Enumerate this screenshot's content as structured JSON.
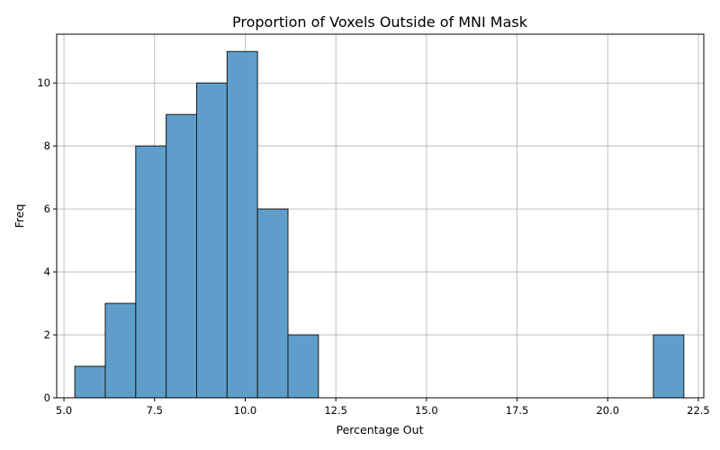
{
  "chart_data": {
    "type": "bar",
    "title": "Proportion of Voxels Outside of MNI Mask",
    "xlabel": "Percentage Out",
    "ylabel": "Freq",
    "xlim": [
      4.8,
      22.65
    ],
    "ylim": [
      0,
      11.55
    ],
    "xticks": [
      5.0,
      7.5,
      10.0,
      12.5,
      15.0,
      17.5,
      20.0,
      22.5
    ],
    "xtick_labels": [
      "5.0",
      "7.5",
      "10.0",
      "12.5",
      "15.0",
      "17.5",
      "20.0",
      "22.5"
    ],
    "yticks": [
      0,
      2,
      4,
      6,
      8,
      10
    ],
    "ytick_labels": [
      "0",
      "2",
      "4",
      "6",
      "8",
      "10"
    ],
    "grid": true,
    "bar_color": "#5f9ecb",
    "bins": [
      {
        "x0": 5.3,
        "x1": 6.14,
        "value": 1
      },
      {
        "x0": 6.14,
        "x1": 6.98,
        "value": 3
      },
      {
        "x0": 6.98,
        "x1": 7.82,
        "value": 8
      },
      {
        "x0": 7.82,
        "x1": 8.66,
        "value": 9
      },
      {
        "x0": 8.66,
        "x1": 9.5,
        "value": 10
      },
      {
        "x0": 9.5,
        "x1": 10.34,
        "value": 11
      },
      {
        "x0": 10.34,
        "x1": 11.18,
        "value": 6
      },
      {
        "x0": 11.18,
        "x1": 12.02,
        "value": 2
      },
      {
        "x0": 21.26,
        "x1": 22.1,
        "value": 2
      }
    ]
  }
}
